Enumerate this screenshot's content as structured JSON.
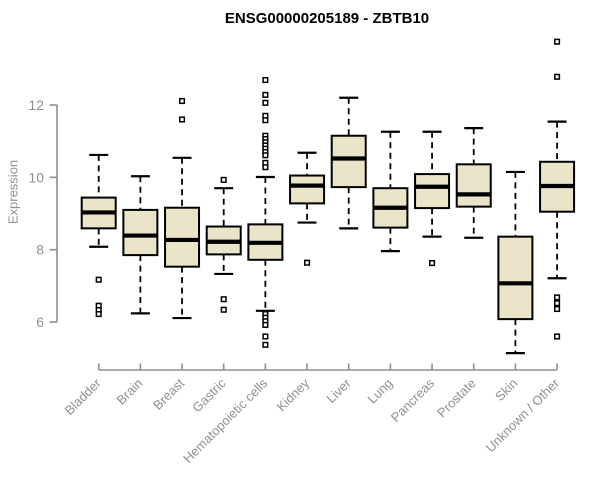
{
  "chart_data": {
    "type": "boxplot",
    "title": "ENSG00000205189 - ZBTB10",
    "ylabel": "Expression",
    "xlabel": "",
    "yticks": [
      6,
      8,
      10,
      12
    ],
    "ylim_axis": [
      6,
      12
    ],
    "grid": "off",
    "legend": "none",
    "categories": [
      "Bladder",
      "Brain",
      "Breast",
      "Gastric",
      "Hematopoietic cells",
      "Kidney",
      "Liver",
      "Lung",
      "Pancreas",
      "Prostate",
      "Skin",
      "Unknown / Other"
    ],
    "series": [
      {
        "label": "Bladder",
        "whisker_low": 8.08,
        "q1": 8.59,
        "median": 9.03,
        "q3": 9.44,
        "whisker_high": 10.62,
        "outliers": [
          7.17,
          6.45,
          6.33,
          6.22
        ]
      },
      {
        "label": "Brain",
        "whisker_low": 6.24,
        "q1": 7.85,
        "median": 8.39,
        "q3": 9.1,
        "whisker_high": 10.03,
        "outliers": []
      },
      {
        "label": "Breast",
        "whisker_low": 6.11,
        "q1": 7.53,
        "median": 8.27,
        "q3": 9.16,
        "whisker_high": 10.54,
        "outliers": [
          12.11,
          11.6
        ]
      },
      {
        "label": "Gastric",
        "whisker_low": 7.33,
        "q1": 7.87,
        "median": 8.22,
        "q3": 8.64,
        "whisker_high": 9.7,
        "outliers": [
          9.93,
          6.63,
          6.34
        ]
      },
      {
        "label": "Hematopoietic cells",
        "whisker_low": 6.31,
        "q1": 7.72,
        "median": 8.19,
        "q3": 8.7,
        "whisker_high": 10.01,
        "outliers": [
          12.69,
          12.28,
          12.06,
          11.7,
          11.58,
          11.15,
          11.06,
          10.97,
          10.88,
          10.79,
          10.7,
          10.61,
          10.4,
          10.28,
          6.22,
          6.12,
          6.02,
          5.92,
          5.6,
          5.37
        ]
      },
      {
        "label": "Kidney",
        "whisker_low": 8.75,
        "q1": 9.28,
        "median": 9.77,
        "q3": 10.05,
        "whisker_high": 10.68,
        "outliers": [
          7.64
        ]
      },
      {
        "label": "Liver",
        "whisker_low": 8.59,
        "q1": 9.73,
        "median": 10.52,
        "q3": 11.15,
        "whisker_high": 12.2,
        "outliers": []
      },
      {
        "label": "Lung",
        "whisker_low": 7.96,
        "q1": 8.61,
        "median": 9.16,
        "q3": 9.7,
        "whisker_high": 11.26,
        "outliers": []
      },
      {
        "label": "Pancreas",
        "whisker_low": 8.36,
        "q1": 9.15,
        "median": 9.74,
        "q3": 10.09,
        "whisker_high": 11.26,
        "outliers": [
          7.63
        ]
      },
      {
        "label": "Prostate",
        "whisker_low": 8.33,
        "q1": 9.19,
        "median": 9.53,
        "q3": 10.36,
        "whisker_high": 11.36,
        "outliers": []
      },
      {
        "label": "Skin",
        "whisker_low": 5.14,
        "q1": 6.08,
        "median": 7.07,
        "q3": 8.36,
        "whisker_high": 10.15,
        "outliers": []
      },
      {
        "label": "Unknown / Other",
        "whisker_low": 7.21,
        "q1": 9.05,
        "median": 9.76,
        "q3": 10.43,
        "whisker_high": 11.54,
        "outliers": [
          13.75,
          12.78,
          6.68,
          6.52,
          6.36,
          5.6
        ]
      }
    ],
    "colors": {
      "box_fill": "#EAE4C9",
      "box_border": "#000000",
      "median": "#000000",
      "whisker": "#000000",
      "axis_line": "#8f8f8f",
      "tick_label": "#909090",
      "title": "#000000"
    }
  }
}
